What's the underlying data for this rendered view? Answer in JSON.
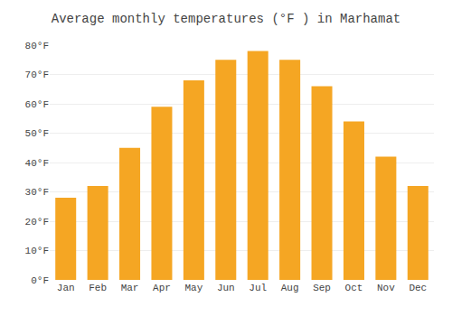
{
  "chart_data": {
    "type": "bar",
    "title": "Average monthly temperatures (°F ) in Marhamat",
    "categories": [
      "Jan",
      "Feb",
      "Mar",
      "Apr",
      "May",
      "Jun",
      "Jul",
      "Aug",
      "Sep",
      "Oct",
      "Nov",
      "Dec"
    ],
    "values": [
      28,
      32,
      45,
      59,
      68,
      75,
      78,
      75,
      66,
      54,
      42,
      32
    ],
    "color": "#F5A623",
    "ylim": [
      0,
      80
    ],
    "yticks": [
      {
        "value": 0,
        "label": "0°F"
      },
      {
        "value": 10,
        "label": "10°F"
      },
      {
        "value": 20,
        "label": "20°F"
      },
      {
        "value": 30,
        "label": "30°F"
      },
      {
        "value": 40,
        "label": "40°F"
      },
      {
        "value": 50,
        "label": "50°F"
      },
      {
        "value": 60,
        "label": "60°F"
      },
      {
        "value": 70,
        "label": "70°F"
      },
      {
        "value": 80,
        "label": "80°F"
      }
    ],
    "grid": true
  }
}
